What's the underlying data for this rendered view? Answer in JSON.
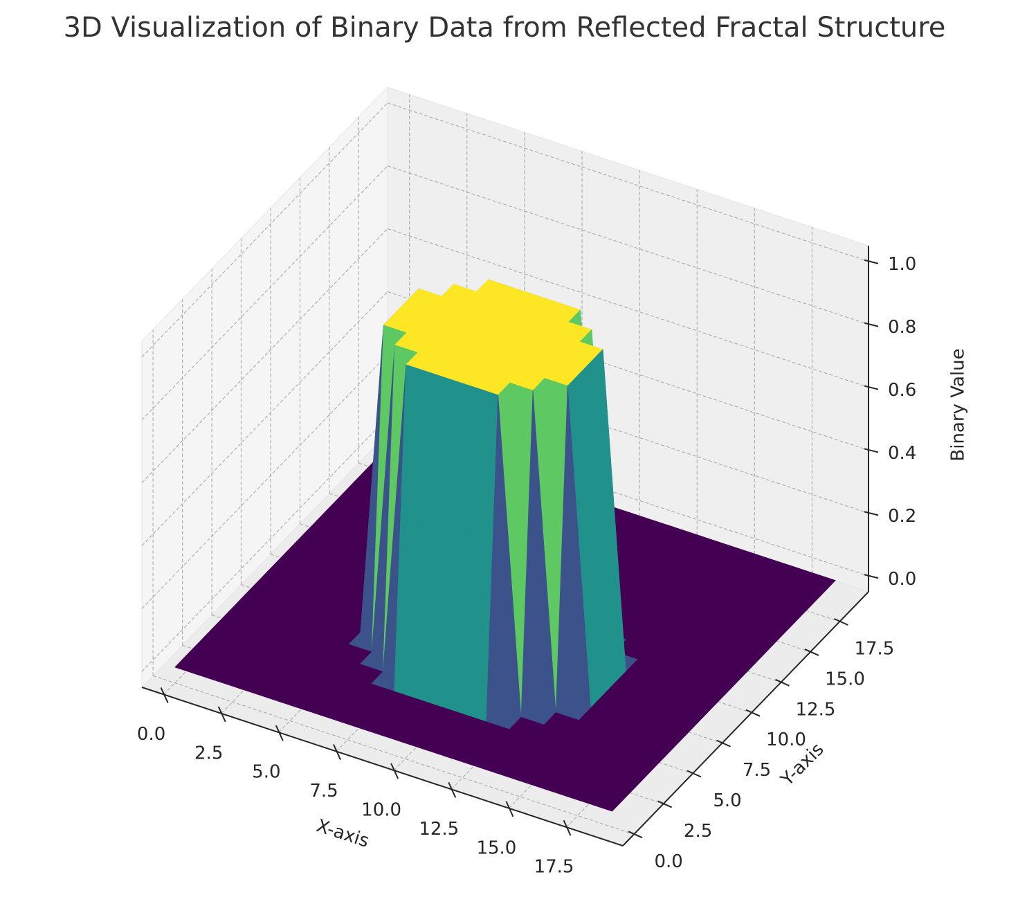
{
  "chart_data": {
    "type": "surface3d",
    "title": "3D Visualization of Binary Data from Reflected Fractal Structure",
    "x_label": "X-axis",
    "y_label": "Y-axis",
    "z_label": "Binary Value",
    "x": [
      0,
      1,
      2,
      3,
      4,
      5,
      6,
      7,
      8,
      9,
      10,
      11,
      12,
      13,
      14,
      15,
      16,
      17,
      18,
      19
    ],
    "y": [
      0,
      1,
      2,
      3,
      4,
      5,
      6,
      7,
      8,
      9,
      10,
      11,
      12,
      13,
      14,
      15,
      16,
      17,
      18,
      19
    ],
    "z": [
      [
        0,
        0,
        0,
        0,
        0,
        0,
        0,
        0,
        0,
        0,
        0,
        0,
        0,
        0,
        0,
        0,
        0,
        0,
        0,
        0
      ],
      [
        0,
        0,
        0,
        0,
        0,
        0,
        0,
        0,
        0,
        0,
        0,
        0,
        0,
        0,
        0,
        0,
        0,
        0,
        0,
        0
      ],
      [
        0,
        0,
        0,
        0,
        0,
        0,
        0,
        0,
        0,
        0,
        0,
        0,
        0,
        0,
        0,
        0,
        0,
        0,
        0,
        0
      ],
      [
        0,
        0,
        0,
        0,
        0,
        0,
        0,
        0,
        0,
        0,
        0,
        0,
        0,
        0,
        0,
        0,
        0,
        0,
        0,
        0
      ],
      [
        0,
        0,
        0,
        0,
        0,
        0,
        0,
        0,
        1,
        1,
        1,
        1,
        1,
        0,
        0,
        0,
        0,
        0,
        0,
        0
      ],
      [
        0,
        0,
        0,
        0,
        0,
        0,
        0,
        1,
        1,
        1,
        1,
        1,
        1,
        1,
        0,
        0,
        0,
        0,
        0,
        0
      ],
      [
        0,
        0,
        0,
        0,
        0,
        0,
        1,
        1,
        1,
        1,
        1,
        1,
        1,
        1,
        1,
        0,
        0,
        0,
        0,
        0
      ],
      [
        0,
        0,
        0,
        0,
        0,
        0,
        1,
        1,
        1,
        1,
        1,
        1,
        1,
        1,
        1,
        0,
        0,
        0,
        0,
        0
      ],
      [
        0,
        0,
        0,
        0,
        0,
        0,
        1,
        1,
        1,
        1,
        1,
        1,
        1,
        1,
        1,
        0,
        0,
        0,
        0,
        0
      ],
      [
        0,
        0,
        0,
        0,
        0,
        0,
        1,
        1,
        1,
        1,
        1,
        1,
        1,
        1,
        1,
        0,
        0,
        0,
        0,
        0
      ],
      [
        0,
        0,
        0,
        0,
        0,
        0,
        0,
        1,
        1,
        1,
        1,
        1,
        1,
        1,
        0,
        0,
        0,
        0,
        0,
        0
      ],
      [
        0,
        0,
        0,
        0,
        0,
        0,
        0,
        0,
        1,
        1,
        1,
        1,
        1,
        0,
        0,
        0,
        0,
        0,
        0,
        0
      ],
      [
        0,
        0,
        0,
        0,
        0,
        0,
        0,
        0,
        0,
        0,
        0,
        0,
        0,
        0,
        0,
        0,
        0,
        0,
        0,
        0
      ],
      [
        0,
        0,
        0,
        0,
        0,
        0,
        0,
        0,
        0,
        0,
        0,
        0,
        0,
        0,
        0,
        0,
        0,
        0,
        0,
        0
      ],
      [
        0,
        0,
        0,
        0,
        0,
        0,
        0,
        0,
        0,
        0,
        0,
        0,
        0,
        0,
        0,
        0,
        0,
        0,
        0,
        0
      ],
      [
        0,
        0,
        0,
        0,
        0,
        0,
        0,
        0,
        0,
        0,
        0,
        0,
        0,
        0,
        0,
        0,
        0,
        0,
        0,
        0
      ],
      [
        0,
        0,
        0,
        0,
        0,
        0,
        0,
        0,
        0,
        0,
        0,
        0,
        0,
        0,
        0,
        0,
        0,
        0,
        0,
        0
      ],
      [
        0,
        0,
        0,
        0,
        0,
        0,
        0,
        0,
        0,
        0,
        0,
        0,
        0,
        0,
        0,
        0,
        0,
        0,
        0,
        0
      ],
      [
        0,
        0,
        0,
        0,
        0,
        0,
        0,
        0,
        0,
        0,
        0,
        0,
        0,
        0,
        0,
        0,
        0,
        0,
        0,
        0
      ],
      [
        0,
        0,
        0,
        0,
        0,
        0,
        0,
        0,
        0,
        0,
        0,
        0,
        0,
        0,
        0,
        0,
        0,
        0,
        0,
        0
      ]
    ],
    "colormap": [
      "#440154",
      "#3b528b",
      "#21918c",
      "#5ec962",
      "#fde725"
    ],
    "xlim": [
      -0.95,
      19.95
    ],
    "ylim": [
      -0.95,
      19.95
    ],
    "zlim": [
      -0.05,
      1.05
    ],
    "xticks": [
      {
        "value": 0,
        "label": "0.0"
      },
      2.5,
      {
        "value": 5,
        "label": "5.0"
      },
      7.5,
      {
        "value": 10,
        "label": "10.0"
      },
      12.5,
      {
        "value": 15,
        "label": "15.0"
      },
      17.5
    ],
    "yticks": [
      {
        "value": 0,
        "label": "0.0"
      },
      2.5,
      {
        "value": 5,
        "label": "5.0"
      },
      7.5,
      {
        "value": 10,
        "label": "10.0"
      },
      12.5,
      {
        "value": 15,
        "label": "15.0"
      },
      17.5
    ],
    "zticks": [
      {
        "value": 0,
        "label": "0.0"
      },
      0.2,
      0.4,
      0.6,
      0.8,
      {
        "value": 1,
        "label": "1.0"
      }
    ],
    "grid": true
  }
}
